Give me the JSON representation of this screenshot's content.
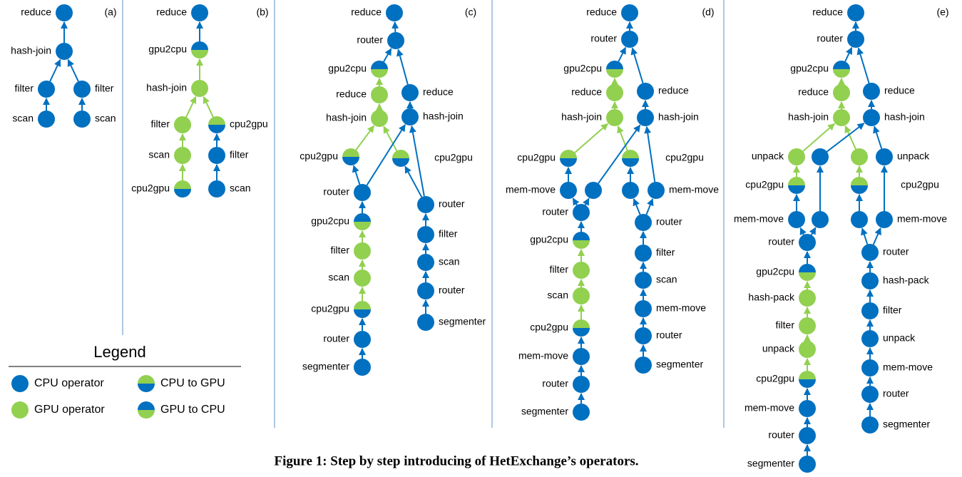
{
  "panels": [
    {
      "tag": "(a)",
      "labels": [
        "reduce",
        "hash-join",
        "filter",
        "filter",
        "scan",
        "scan"
      ]
    },
    {
      "tag": "(b)",
      "labels": [
        "reduce",
        "gpu2cpu",
        "hash-join",
        "filter",
        "cpu2gpu",
        "scan",
        "filter",
        "cpu2gpu",
        "scan"
      ]
    },
    {
      "tag": "(c)",
      "labels": [
        "reduce",
        "router",
        "gpu2cpu",
        "reduce",
        "reduce",
        "hash-join",
        "hash-join",
        "cpu2gpu",
        "cpu2gpu",
        "router",
        "router",
        "gpu2cpu",
        "filter",
        "filter",
        "scan",
        "scan",
        "router",
        "cpu2gpu",
        "segmenter",
        "router",
        "segmenter"
      ]
    },
    {
      "tag": "(d)",
      "labels": [
        "reduce",
        "router",
        "gpu2cpu",
        "reduce",
        "reduce",
        "hash-join",
        "hash-join",
        "cpu2gpu",
        "cpu2gpu",
        "mem-move",
        "mem-move",
        "router",
        "router",
        "gpu2cpu",
        "filter",
        "filter",
        "scan",
        "scan",
        "mem-move",
        "cpu2gpu",
        "router",
        "mem-move",
        "segmenter",
        "router",
        "segmenter"
      ]
    },
    {
      "tag": "(e)",
      "labels": [
        "reduce",
        "router",
        "gpu2cpu",
        "reduce",
        "reduce",
        "hash-join",
        "hash-join",
        "unpack",
        "unpack",
        "cpu2gpu",
        "cpu2gpu",
        "mem-move",
        "mem-move",
        "router",
        "router",
        "gpu2cpu",
        "hash-pack",
        "hash-pack",
        "filter",
        "filter",
        "unpack",
        "unpack",
        "mem-move",
        "cpu2gpu",
        "router",
        "mem-move",
        "segmenter",
        "router",
        "segmenter"
      ]
    }
  ],
  "legend": {
    "title": "Legend",
    "items": [
      "CPU operator",
      "GPU operator",
      "CPU to GPU",
      "GPU to CPU"
    ]
  },
  "caption": "Figure 1: Step by step introducing of HetExchange’s operators."
}
